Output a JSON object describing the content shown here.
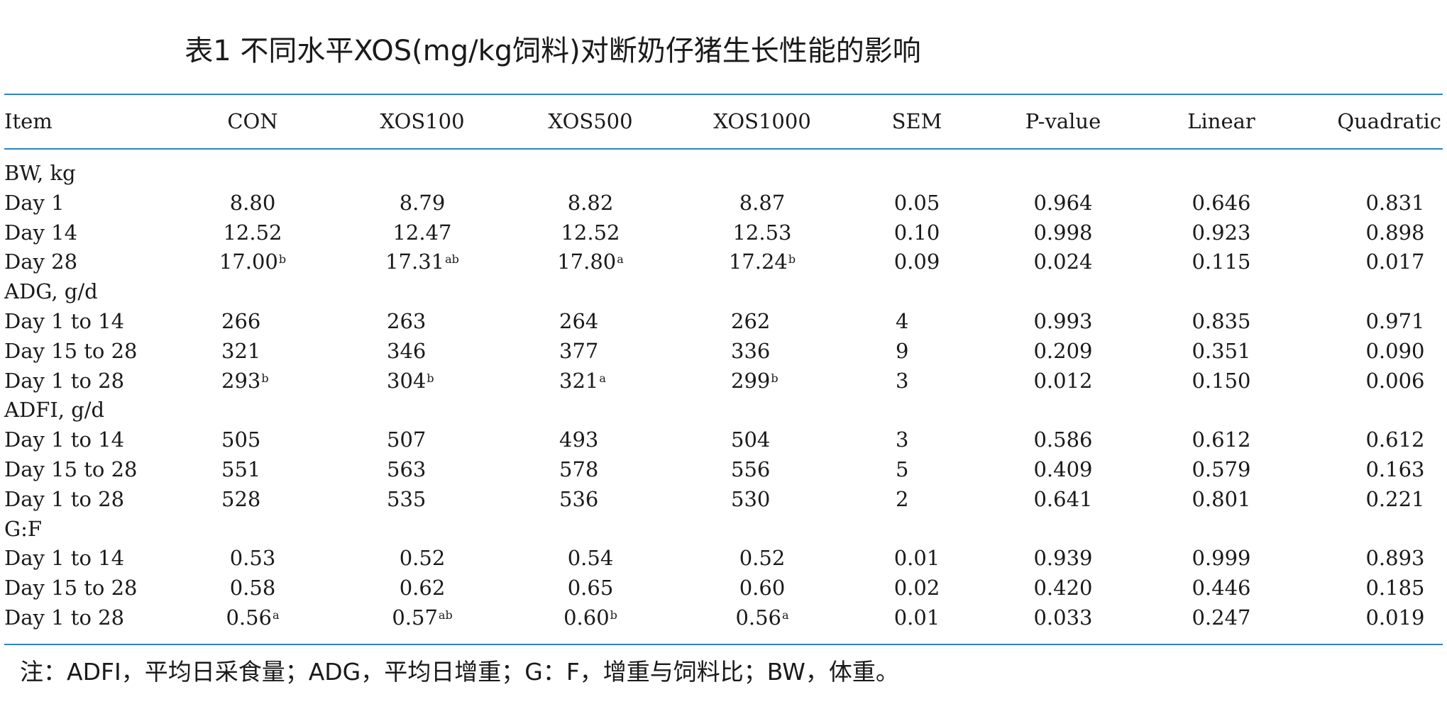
{
  "title": "表1 不同水平XOS(mg/kg饲料)对断奶仔猪生长性能的影响",
  "header": [
    "Item",
    "CON",
    "XOS100",
    "XOS500",
    "XOS1000",
    "SEM",
    "P-value",
    "Linear",
    "Quadratic"
  ],
  "rows": [
    {
      "type": "group",
      "label": "BW, kg"
    },
    {
      "type": "data",
      "label": "Day 1",
      "style": "dec",
      "vals": [
        "8.80",
        "8.79",
        "8.82",
        "8.87"
      ],
      "sups": [
        "",
        "",
        "",
        ""
      ],
      "stats": [
        "0.05",
        "0.964",
        "0.646",
        "0.831"
      ]
    },
    {
      "type": "data",
      "label": "Day 14",
      "style": "dec",
      "vals": [
        "12.52",
        "12.47",
        "12.52",
        "12.53"
      ],
      "sups": [
        "",
        "",
        "",
        ""
      ],
      "stats": [
        "0.10",
        "0.998",
        "0.923",
        "0.898"
      ]
    },
    {
      "type": "data",
      "label": "Day 28",
      "style": "dec",
      "vals": [
        "17.00",
        "17.31",
        "17.80",
        "17.24"
      ],
      "sups": [
        "b",
        "ab",
        "a",
        "b"
      ],
      "stats": [
        "0.09",
        "0.024",
        "0.115",
        "0.017"
      ]
    },
    {
      "type": "group",
      "label": "ADG, g/d"
    },
    {
      "type": "data",
      "label": "Day 1 to 14",
      "style": "int",
      "vals": [
        "266",
        "263",
        "264",
        "262"
      ],
      "sups": [
        "",
        "",
        "",
        ""
      ],
      "stats": [
        "4",
        "0.993",
        "0.835",
        "0.971"
      ]
    },
    {
      "type": "data",
      "label": "Day 15 to 28",
      "style": "int",
      "vals": [
        "321",
        "346",
        "377",
        "336"
      ],
      "sups": [
        "",
        "",
        "",
        ""
      ],
      "stats": [
        "9",
        "0.209",
        "0.351",
        "0.090"
      ]
    },
    {
      "type": "data",
      "label": "Day 1 to 28",
      "style": "int",
      "vals": [
        "293",
        "304",
        "321",
        "299"
      ],
      "sups": [
        "b",
        "b",
        "a",
        "b"
      ],
      "stats": [
        "3",
        "0.012",
        "0.150",
        "0.006"
      ]
    },
    {
      "type": "group",
      "label": "ADFI, g/d"
    },
    {
      "type": "data",
      "label": "Day 1 to 14",
      "style": "int",
      "vals": [
        "505",
        "507",
        "493",
        "504"
      ],
      "sups": [
        "",
        "",
        "",
        ""
      ],
      "stats": [
        "3",
        "0.586",
        "0.612",
        "0.612"
      ]
    },
    {
      "type": "data",
      "label": "Day 15 to 28",
      "style": "int",
      "vals": [
        "551",
        "563",
        "578",
        "556"
      ],
      "sups": [
        "",
        "",
        "",
        ""
      ],
      "stats": [
        "5",
        "0.409",
        "0.579",
        "0.163"
      ]
    },
    {
      "type": "data",
      "label": "Day 1 to 28",
      "style": "int",
      "vals": [
        "528",
        "535",
        "536",
        "530"
      ],
      "sups": [
        "",
        "",
        "",
        ""
      ],
      "stats": [
        "2",
        "0.641",
        "0.801",
        "0.221"
      ]
    },
    {
      "type": "group",
      "label": "G:F"
    },
    {
      "type": "data",
      "label": "Day 1 to 14",
      "style": "dec",
      "vals": [
        "0.53",
        "0.52",
        "0.54",
        "0.52"
      ],
      "sups": [
        "",
        "",
        "",
        ""
      ],
      "stats": [
        "0.01",
        "0.939",
        "0.999",
        "0.893"
      ]
    },
    {
      "type": "data",
      "label": "Day 15 to 28",
      "style": "dec",
      "vals": [
        "0.58",
        "0.62",
        "0.65",
        "0.60"
      ],
      "sups": [
        "",
        "",
        "",
        ""
      ],
      "stats": [
        "0.02",
        "0.420",
        "0.446",
        "0.185"
      ]
    },
    {
      "type": "data",
      "label": "Day 1 to 28",
      "style": "dec",
      "vals": [
        "0.56",
        "0.57",
        "0.60",
        "0.56"
      ],
      "sups": [
        "a",
        "ab",
        "b",
        "a"
      ],
      "stats": [
        "0.01",
        "0.033",
        "0.247",
        "0.019"
      ]
    }
  ],
  "note": "注：ADFI，平均日采食量；ADG，平均日增重；G：F，增重与饲料比；BW，体重。",
  "colors": {
    "rule": "#2a86c8",
    "text": "#1a1a1a"
  }
}
